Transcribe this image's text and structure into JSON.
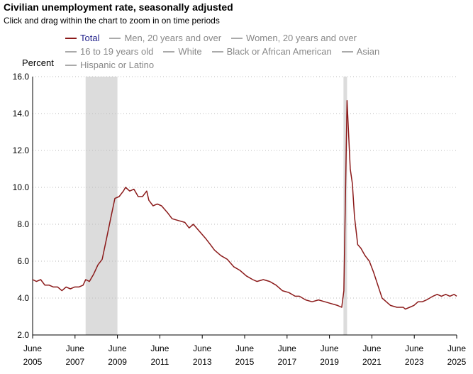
{
  "title": "Civilian unemployment rate, seasonally adjusted",
  "subtitle": "Click and drag within the chart to zoom in on time periods",
  "legend": [
    {
      "label": "Total",
      "color": "#8b1a1a",
      "active": true
    },
    {
      "label": "Men, 20 years and over",
      "color": "#aaaaaa",
      "active": false
    },
    {
      "label": "Women, 20 years and over",
      "color": "#aaaaaa",
      "active": false
    },
    {
      "label": "16 to 19 years old",
      "color": "#aaaaaa",
      "active": false
    },
    {
      "label": "White",
      "color": "#aaaaaa",
      "active": false
    },
    {
      "label": "Black or African American",
      "color": "#aaaaaa",
      "active": false
    },
    {
      "label": "Asian",
      "color": "#aaaaaa",
      "active": false
    },
    {
      "label": "Hispanic or Latino",
      "color": "#aaaaaa",
      "active": false
    }
  ],
  "chart_data": {
    "type": "line",
    "ylabel": "Percent",
    "ylim": [
      2.0,
      16.0
    ],
    "y_ticks": [
      "2.0",
      "4.0",
      "6.0",
      "8.0",
      "10.0",
      "12.0",
      "14.0",
      "16.0"
    ],
    "xlim": [
      2005.42,
      2025.42
    ],
    "x_ticks": [
      {
        "value": 2005.42,
        "line1": "June",
        "line2": "2005"
      },
      {
        "value": 2007.42,
        "line1": "June",
        "line2": "2007"
      },
      {
        "value": 2009.42,
        "line1": "June",
        "line2": "2009"
      },
      {
        "value": 2011.42,
        "line1": "June",
        "line2": "2011"
      },
      {
        "value": 2013.42,
        "line1": "June",
        "line2": "2013"
      },
      {
        "value": 2015.42,
        "line1": "June",
        "line2": "2015"
      },
      {
        "value": 2017.42,
        "line1": "June",
        "line2": "2017"
      },
      {
        "value": 2019.42,
        "line1": "June",
        "line2": "2019"
      },
      {
        "value": 2021.42,
        "line1": "June",
        "line2": "2021"
      },
      {
        "value": 2023.42,
        "line1": "June",
        "line2": "2023"
      },
      {
        "value": 2025.42,
        "line1": "June",
        "line2": "2025"
      }
    ],
    "grid": "horizontal-dotted",
    "recessions": [
      [
        2007.92,
        2009.42
      ],
      [
        2020.08,
        2020.25
      ]
    ],
    "series": [
      {
        "name": "Total",
        "color": "#8b1a1a",
        "points": [
          [
            2005.42,
            5.0
          ],
          [
            2005.6,
            4.9
          ],
          [
            2005.8,
            5.0
          ],
          [
            2006.0,
            4.7
          ],
          [
            2006.2,
            4.7
          ],
          [
            2006.4,
            4.6
          ],
          [
            2006.6,
            4.6
          ],
          [
            2006.8,
            4.4
          ],
          [
            2007.0,
            4.6
          ],
          [
            2007.2,
            4.5
          ],
          [
            2007.4,
            4.6
          ],
          [
            2007.6,
            4.6
          ],
          [
            2007.8,
            4.7
          ],
          [
            2007.92,
            5.0
          ],
          [
            2008.1,
            4.9
          ],
          [
            2008.3,
            5.3
          ],
          [
            2008.5,
            5.8
          ],
          [
            2008.7,
            6.1
          ],
          [
            2008.9,
            7.2
          ],
          [
            2009.1,
            8.3
          ],
          [
            2009.3,
            9.4
          ],
          [
            2009.5,
            9.5
          ],
          [
            2009.7,
            9.8
          ],
          [
            2009.8,
            10.0
          ],
          [
            2010.0,
            9.8
          ],
          [
            2010.2,
            9.9
          ],
          [
            2010.4,
            9.5
          ],
          [
            2010.6,
            9.5
          ],
          [
            2010.8,
            9.8
          ],
          [
            2010.9,
            9.3
          ],
          [
            2011.1,
            9.0
          ],
          [
            2011.3,
            9.1
          ],
          [
            2011.5,
            9.0
          ],
          [
            2011.8,
            8.6
          ],
          [
            2012.0,
            8.3
          ],
          [
            2012.3,
            8.2
          ],
          [
            2012.6,
            8.1
          ],
          [
            2012.8,
            7.8
          ],
          [
            2013.0,
            8.0
          ],
          [
            2013.3,
            7.6
          ],
          [
            2013.6,
            7.2
          ],
          [
            2013.8,
            6.9
          ],
          [
            2014.0,
            6.6
          ],
          [
            2014.3,
            6.3
          ],
          [
            2014.6,
            6.1
          ],
          [
            2014.9,
            5.7
          ],
          [
            2015.2,
            5.5
          ],
          [
            2015.5,
            5.2
          ],
          [
            2015.8,
            5.0
          ],
          [
            2016.0,
            4.9
          ],
          [
            2016.3,
            5.0
          ],
          [
            2016.6,
            4.9
          ],
          [
            2016.9,
            4.7
          ],
          [
            2017.2,
            4.4
          ],
          [
            2017.5,
            4.3
          ],
          [
            2017.8,
            4.1
          ],
          [
            2018.0,
            4.1
          ],
          [
            2018.3,
            3.9
          ],
          [
            2018.6,
            3.8
          ],
          [
            2018.9,
            3.9
          ],
          [
            2019.2,
            3.8
          ],
          [
            2019.5,
            3.7
          ],
          [
            2019.8,
            3.6
          ],
          [
            2020.0,
            3.5
          ],
          [
            2020.1,
            4.4
          ],
          [
            2020.25,
            14.7
          ],
          [
            2020.4,
            11.0
          ],
          [
            2020.5,
            10.2
          ],
          [
            2020.6,
            8.4
          ],
          [
            2020.75,
            6.9
          ],
          [
            2020.9,
            6.7
          ],
          [
            2021.1,
            6.3
          ],
          [
            2021.3,
            6.0
          ],
          [
            2021.5,
            5.4
          ],
          [
            2021.7,
            4.7
          ],
          [
            2021.9,
            4.0
          ],
          [
            2022.1,
            3.8
          ],
          [
            2022.3,
            3.6
          ],
          [
            2022.6,
            3.5
          ],
          [
            2022.9,
            3.5
          ],
          [
            2023.0,
            3.4
          ],
          [
            2023.2,
            3.5
          ],
          [
            2023.4,
            3.6
          ],
          [
            2023.6,
            3.8
          ],
          [
            2023.8,
            3.8
          ],
          [
            2024.0,
            3.9
          ],
          [
            2024.3,
            4.1
          ],
          [
            2024.5,
            4.2
          ],
          [
            2024.7,
            4.1
          ],
          [
            2024.9,
            4.2
          ],
          [
            2025.1,
            4.1
          ],
          [
            2025.3,
            4.2
          ],
          [
            2025.42,
            4.1
          ]
        ]
      }
    ]
  }
}
